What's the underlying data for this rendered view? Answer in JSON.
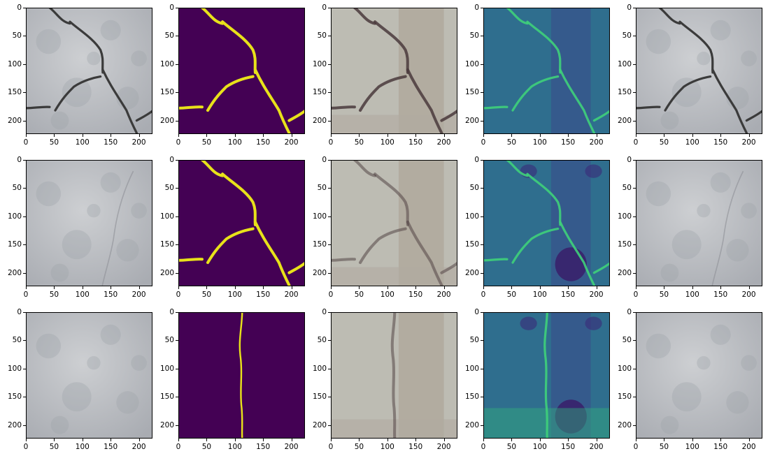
{
  "figure": {
    "rows": 3,
    "columns": 5,
    "axes": {
      "x_ticks": [
        "0",
        "50",
        "100",
        "150",
        "200"
      ],
      "y_ticks": [
        "0",
        "50",
        "100",
        "150",
        "200"
      ],
      "x_range": [
        0,
        224
      ],
      "y_range": [
        224,
        0
      ]
    },
    "panel_types": [
      "input-photo",
      "ground-truth-mask",
      "reconstruction",
      "crack-heatmap",
      "input-photo-copy"
    ],
    "colors": {
      "mask_background": "#440154",
      "mask_crack": "#e8e21a",
      "heatmap_background": "#2f6e8e",
      "heatmap_crack": "#3fd07a",
      "concrete": "#b9bbbf"
    },
    "crack_patterns": [
      "branching-crack",
      "branching-crack",
      "vertical-crack"
    ]
  }
}
